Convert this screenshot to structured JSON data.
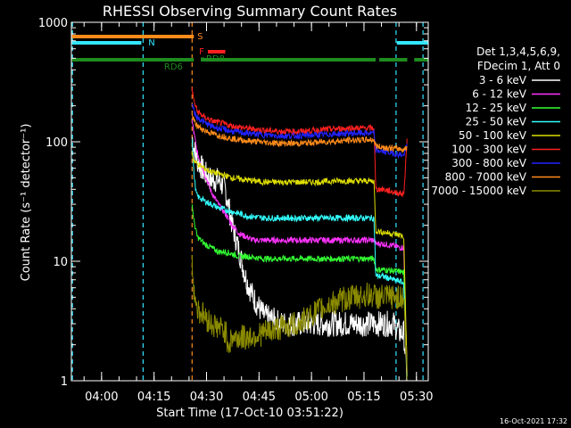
{
  "chart_data": {
    "type": "line",
    "title": "RHESSI Observing Summary Count Rates",
    "xlabel": "Start Time (17-Oct-10 03:51:22)",
    "ylabel": "Count Rate (s⁻¹ detector⁻¹)",
    "yscale": "log",
    "ylim": [
      1,
      1000
    ],
    "xlim_min": [
      0,
      102
    ],
    "y_ticks": [
      "1",
      "10",
      "100",
      "1000"
    ],
    "y_tick_values": [
      1,
      10,
      100,
      1000
    ],
    "x_ticks": [
      "04:00",
      "04:15",
      "04:30",
      "04:45",
      "05:00",
      "05:15",
      "05:30"
    ],
    "x_tick_values": [
      8.63,
      23.63,
      38.63,
      53.63,
      68.63,
      83.63,
      98.63
    ],
    "grid": false,
    "legend_position": "right",
    "legend_header": [
      "Det 1,3,4,5,6,9,",
      "FDecim 1, Att 0"
    ],
    "timestamp": "16-Oct-2021 17:32",
    "flags": [
      {
        "label": "S",
        "color": "#ff8c1a",
        "segments": [
          [
            0,
            35
          ]
        ]
      },
      {
        "label": "N",
        "color": "#33e6ff",
        "segments": [
          [
            0,
            20
          ],
          [
            93,
            102
          ]
        ]
      },
      {
        "label": "F",
        "color": "#ff2020",
        "segments": [
          [
            39,
            44
          ]
        ]
      },
      {
        "label": "RD6",
        "color": "#1e8c1e",
        "segments": [
          [
            0,
            35
          ],
          [
            37,
            87
          ],
          [
            88,
            96
          ],
          [
            98,
            102
          ]
        ]
      },
      {
        "label": "RD8",
        "color": "#1e8c1e",
        "segments": [
          [
            37,
            38
          ]
        ]
      }
    ],
    "vlines": [
      {
        "x": 0.3,
        "color": "#33e6ff"
      },
      {
        "x": 20.5,
        "color": "#33e6ff"
      },
      {
        "x": 34.5,
        "color": "#ff8c1a"
      },
      {
        "x": 92.8,
        "color": "#33e6ff"
      },
      {
        "x": 100.5,
        "color": "#33e6ff"
      }
    ],
    "series": [
      {
        "name": "3 - 6 keV",
        "color": "#ffffff",
        "x": [
          34.5,
          35,
          36,
          38,
          40,
          42,
          44,
          46,
          48,
          50,
          52,
          55,
          60,
          65,
          70,
          75,
          80,
          83,
          86,
          89,
          92,
          94,
          95,
          96
        ],
        "values": [
          110,
          90,
          70,
          55,
          48,
          48,
          40,
          20,
          12,
          7,
          5,
          3.5,
          3,
          3,
          3,
          3,
          3,
          3,
          3,
          3,
          3,
          2.5,
          2.5,
          1
        ]
      },
      {
        "name": "6 - 12 keV",
        "color": "#ff33ff",
        "x": [
          34.5,
          35,
          36,
          38,
          40,
          42,
          44,
          46,
          48,
          50,
          52,
          55,
          60,
          65,
          70,
          75,
          80,
          85,
          86.5,
          87,
          89,
          92,
          94,
          95,
          96
        ],
        "values": [
          150,
          120,
          80,
          55,
          38,
          30,
          25,
          20,
          17,
          16,
          15,
          15,
          15,
          15,
          15,
          15,
          15,
          15,
          15,
          14,
          14,
          13.5,
          13,
          13,
          1
        ]
      },
      {
        "name": "12 - 25 keV",
        "color": "#33ff33",
        "x": [
          34.5,
          35,
          35.6,
          36,
          38,
          40,
          42,
          44,
          46,
          48,
          50,
          55,
          60,
          65,
          70,
          75,
          80,
          85,
          86.5,
          87,
          89,
          92,
          94,
          95,
          96
        ],
        "values": [
          30,
          22,
          18,
          16,
          14,
          13,
          12,
          12,
          11.5,
          11,
          11,
          10.5,
          10.5,
          10.5,
          10.5,
          10.5,
          10.5,
          10.5,
          10.5,
          8.5,
          8.5,
          8.3,
          8.2,
          8,
          1
        ]
      },
      {
        "name": "25 - 50 keV",
        "color": "#33ffff",
        "x": [
          34.5,
          35,
          35.6,
          36,
          38,
          40,
          42,
          44,
          46,
          48,
          50,
          55,
          60,
          65,
          70,
          75,
          80,
          85,
          86.5,
          87,
          89,
          92,
          94,
          95,
          96
        ],
        "values": [
          110,
          55,
          38,
          35,
          32,
          30,
          28,
          27,
          26,
          25,
          24,
          23,
          23,
          23,
          23,
          23,
          23,
          23,
          23,
          7.5,
          7.5,
          7,
          6.8,
          6.5,
          1
        ]
      },
      {
        "name": "50 - 100 keV",
        "color": "#dddd00",
        "x": [
          34.5,
          35,
          36,
          38,
          40,
          42,
          44,
          46,
          50,
          55,
          60,
          65,
          70,
          75,
          80,
          85,
          86.5,
          87,
          89,
          92,
          94,
          95,
          96
        ],
        "values": [
          80,
          70,
          65,
          60,
          56,
          54,
          52,
          50,
          48,
          46,
          46,
          46,
          46,
          47,
          47,
          47,
          47,
          18,
          17.5,
          17,
          16.5,
          16,
          1
        ]
      },
      {
        "name": "100 - 300 keV",
        "color": "#ff2020",
        "x": [
          34.5,
          35,
          36,
          38,
          40,
          42,
          44,
          46,
          50,
          55,
          60,
          65,
          70,
          75,
          80,
          85,
          86.5,
          87,
          89,
          92,
          94,
          95,
          96
        ],
        "values": [
          280,
          220,
          180,
          160,
          150,
          145,
          140,
          135,
          130,
          125,
          122,
          122,
          125,
          128,
          130,
          130,
          130,
          40,
          40,
          38,
          37,
          36,
          110
        ]
      },
      {
        "name": "300 - 800 keV",
        "color": "#2222ff",
        "x": [
          34.5,
          35,
          36,
          38,
          40,
          42,
          44,
          46,
          50,
          55,
          60,
          65,
          70,
          75,
          80,
          85,
          86.5,
          87,
          89,
          92,
          94,
          95,
          96
        ],
        "values": [
          210,
          180,
          160,
          145,
          135,
          130,
          126,
          122,
          118,
          114,
          112,
          112,
          114,
          116,
          118,
          118,
          118,
          85,
          83,
          80,
          78,
          77,
          95
        ]
      },
      {
        "name": "800 - 7000 keV",
        "color": "#ff8c1a",
        "x": [
          34.5,
          35,
          36,
          38,
          40,
          42,
          44,
          46,
          50,
          55,
          60,
          65,
          70,
          75,
          80,
          85,
          86.5,
          87,
          89,
          92,
          94,
          95,
          96
        ],
        "values": [
          170,
          150,
          135,
          125,
          118,
          113,
          110,
          106,
          102,
          99,
          97,
          97,
          99,
          101,
          103,
          104,
          104,
          92,
          90,
          88,
          87,
          86,
          90
        ]
      },
      {
        "name": "7000 - 15000 keV",
        "color": "#8b8b00",
        "x": [
          34.5,
          35,
          35.6,
          36,
          38,
          40,
          42,
          44,
          45,
          46,
          50,
          55,
          60,
          65,
          70,
          75,
          80,
          85,
          86.5,
          87,
          89,
          92,
          94,
          95,
          96
        ],
        "values": [
          9,
          6,
          4.5,
          4,
          3.5,
          3,
          2.8,
          2.6,
          2,
          2.3,
          2.3,
          2.5,
          2.8,
          3,
          3.8,
          4.5,
          5,
          5.2,
          5.2,
          5,
          5,
          5,
          5,
          5,
          1
        ]
      }
    ]
  }
}
